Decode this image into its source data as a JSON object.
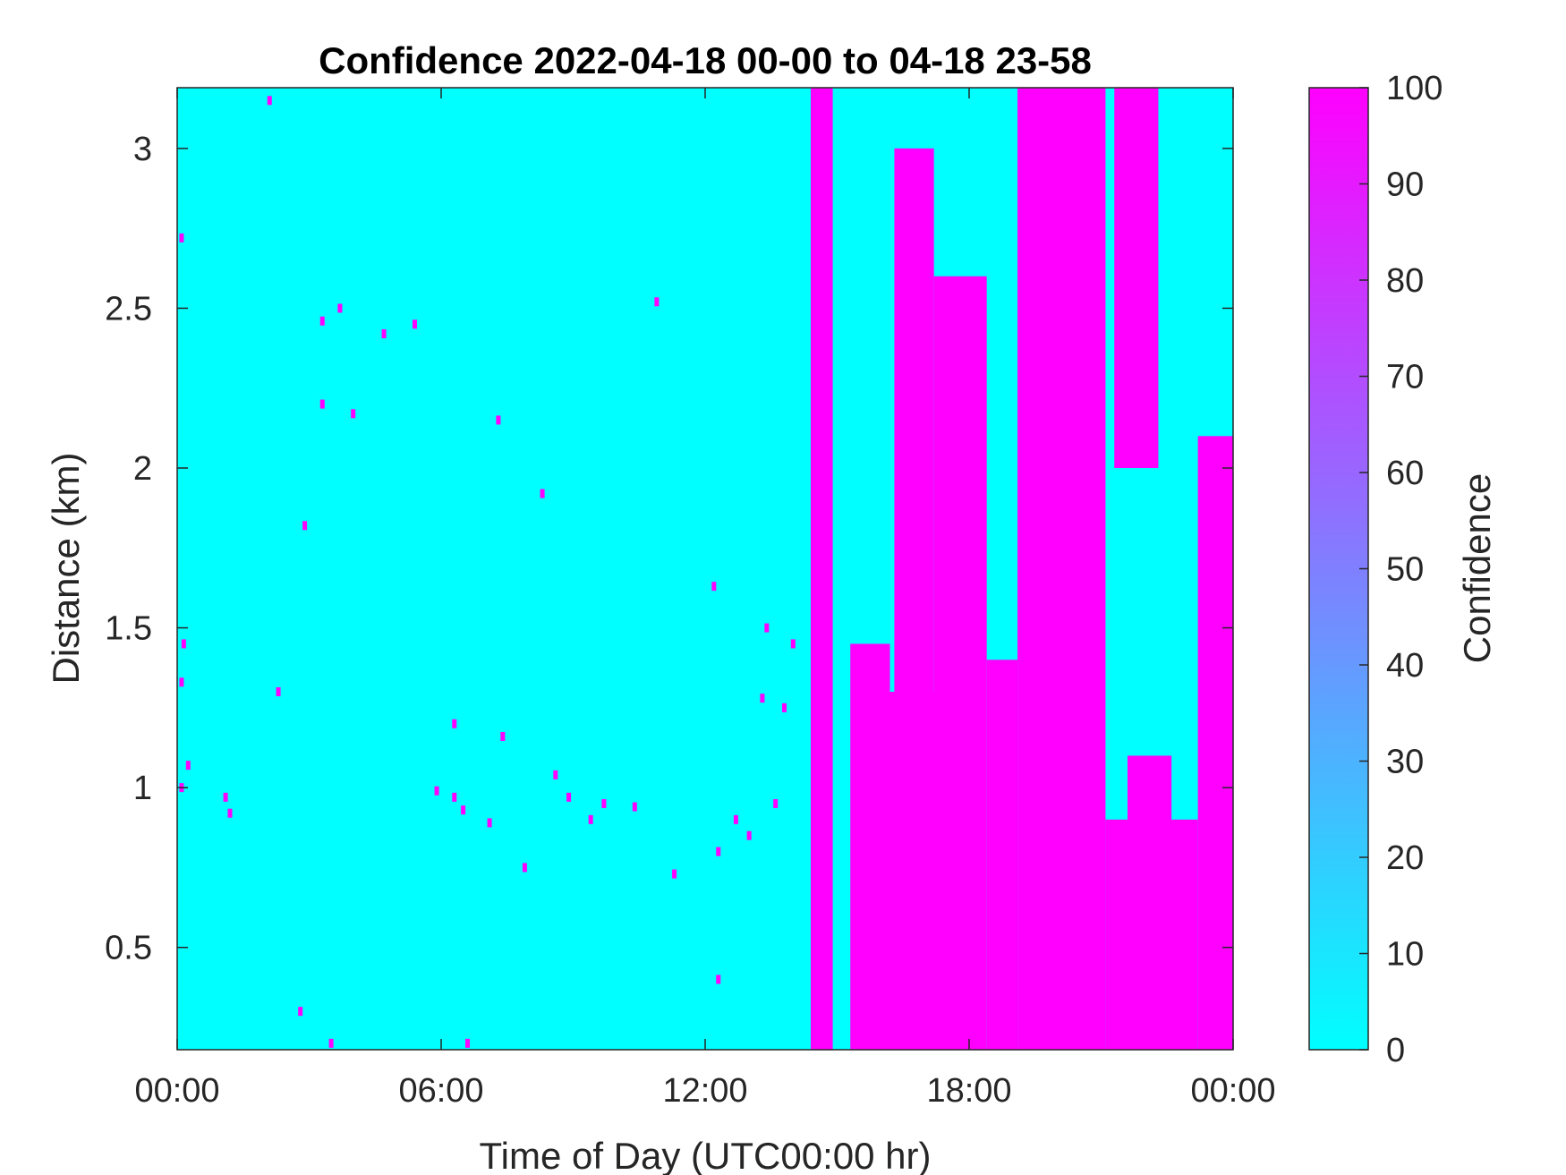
{
  "chart_data": {
    "type": "heatmap",
    "title": "Confidence 2022-04-18 00-00 to 04-18 23-58",
    "xlabel": "Time of Day (UTC00:00 hr)",
    "ylabel": "Distance (km)",
    "x_unit": "hours",
    "xlim": [
      0,
      24
    ],
    "ylim": [
      0.18,
      3.19
    ],
    "x_ticks": [
      {
        "value": 0,
        "label": "00:00"
      },
      {
        "value": 6,
        "label": "06:00"
      },
      {
        "value": 12,
        "label": "12:00"
      },
      {
        "value": 18,
        "label": "18:00"
      },
      {
        "value": 24,
        "label": "00:00"
      }
    ],
    "y_ticks": [
      {
        "value": 0.5,
        "label": "0.5"
      },
      {
        "value": 1,
        "label": "1"
      },
      {
        "value": 1.5,
        "label": "1.5"
      },
      {
        "value": 2,
        "label": "2"
      },
      {
        "value": 2.5,
        "label": "2.5"
      },
      {
        "value": 3,
        "label": "3"
      }
    ],
    "colorbar": {
      "label": "Confidence",
      "range": [
        0,
        100
      ],
      "ticks": [
        "0",
        "10",
        "20",
        "30",
        "40",
        "50",
        "60",
        "70",
        "80",
        "90",
        "100"
      ],
      "colormap": "cool",
      "color_low": "#00ffff",
      "color_high": "#ff00ff"
    },
    "background_value": 0,
    "high_value": 100,
    "high_confidence_regions": [
      {
        "x_start": 14.4,
        "x_end": 14.9,
        "y_bottom": 0.18,
        "y_top": 3.19
      },
      {
        "x_start": 15.3,
        "x_end": 16.2,
        "y_bottom": 0.18,
        "y_top": 1.45
      },
      {
        "x_start": 15.8,
        "x_end": 17.8,
        "y_bottom": 0.18,
        "y_top": 1.3
      },
      {
        "x_start": 16.3,
        "x_end": 17.2,
        "y_bottom": 1.3,
        "y_top": 3.0
      },
      {
        "x_start": 17.2,
        "x_end": 18.4,
        "y_bottom": 0.18,
        "y_top": 2.6
      },
      {
        "x_start": 18.4,
        "x_end": 19.1,
        "y_bottom": 0.18,
        "y_top": 1.4
      },
      {
        "x_start": 19.1,
        "x_end": 21.1,
        "y_bottom": 0.18,
        "y_top": 3.19
      },
      {
        "x_start": 21.1,
        "x_end": 21.6,
        "y_bottom": 0.18,
        "y_top": 0.9
      },
      {
        "x_start": 21.6,
        "x_end": 22.6,
        "y_bottom": 0.18,
        "y_top": 1.1
      },
      {
        "x_start": 21.3,
        "x_end": 22.3,
        "y_bottom": 2.0,
        "y_top": 3.19
      },
      {
        "x_start": 22.4,
        "x_end": 23.2,
        "y_bottom": 0.18,
        "y_top": 0.9
      },
      {
        "x_start": 23.2,
        "x_end": 24.0,
        "y_bottom": 0.18,
        "y_top": 2.1
      }
    ],
    "scattered_high_pixels": [
      [
        0.1,
        1.0
      ],
      [
        0.15,
        1.45
      ],
      [
        0.1,
        1.33
      ],
      [
        0.1,
        2.72
      ],
      [
        0.25,
        1.07
      ],
      [
        1.1,
        0.97
      ],
      [
        1.2,
        0.92
      ],
      [
        2.1,
        3.15
      ],
      [
        2.3,
        1.3
      ],
      [
        2.8,
        0.3
      ],
      [
        2.9,
        1.82
      ],
      [
        3.3,
        2.46
      ],
      [
        3.3,
        2.2
      ],
      [
        3.5,
        0.2
      ],
      [
        3.7,
        2.5
      ],
      [
        4.0,
        2.17
      ],
      [
        4.7,
        2.42
      ],
      [
        5.4,
        2.45
      ],
      [
        5.9,
        0.99
      ],
      [
        6.3,
        0.97
      ],
      [
        6.5,
        0.93
      ],
      [
        6.3,
        1.2
      ],
      [
        6.6,
        0.2
      ],
      [
        7.1,
        0.89
      ],
      [
        7.3,
        2.15
      ],
      [
        7.4,
        1.16
      ],
      [
        7.9,
        0.75
      ],
      [
        8.3,
        1.92
      ],
      [
        8.6,
        1.04
      ],
      [
        8.9,
        0.97
      ],
      [
        9.4,
        0.9
      ],
      [
        9.7,
        0.95
      ],
      [
        10.4,
        0.94
      ],
      [
        10.9,
        2.52
      ],
      [
        11.3,
        0.73
      ],
      [
        12.2,
        1.63
      ],
      [
        12.3,
        0.4
      ],
      [
        12.3,
        0.8
      ],
      [
        12.7,
        0.9
      ],
      [
        13.0,
        0.85
      ],
      [
        13.3,
        1.28
      ],
      [
        13.4,
        1.5
      ],
      [
        13.6,
        0.95
      ],
      [
        13.8,
        1.25
      ],
      [
        14.0,
        1.45
      ]
    ]
  }
}
